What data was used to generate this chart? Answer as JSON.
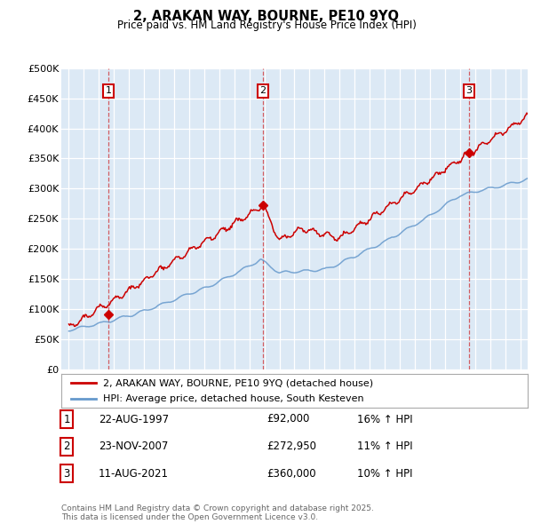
{
  "title": "2, ARAKAN WAY, BOURNE, PE10 9YQ",
  "subtitle": "Price paid vs. HM Land Registry's House Price Index (HPI)",
  "legend_line1": "2, ARAKAN WAY, BOURNE, PE10 9YQ (detached house)",
  "legend_line2": "HPI: Average price, detached house, South Kesteven",
  "ylim": [
    0,
    500000
  ],
  "yticks": [
    0,
    50000,
    100000,
    150000,
    200000,
    250000,
    300000,
    350000,
    400000,
    450000,
    500000
  ],
  "ytick_labels": [
    "£0",
    "£50K",
    "£100K",
    "£150K",
    "£200K",
    "£250K",
    "£300K",
    "£350K",
    "£400K",
    "£450K",
    "£500K"
  ],
  "plot_bg_color": "#dce9f5",
  "fig_bg_color": "#ffffff",
  "grid_color": "#ffffff",
  "red_color": "#cc0000",
  "blue_color": "#6699cc",
  "sale1_date": 1997.64,
  "sale1_price": 92000,
  "sale2_date": 2007.9,
  "sale2_price": 272950,
  "sale3_date": 2021.6,
  "sale3_price": 360000,
  "table_rows": [
    {
      "num": "1",
      "date": "22-AUG-1997",
      "price": "£92,000",
      "hpi": "16% ↑ HPI"
    },
    {
      "num": "2",
      "date": "23-NOV-2007",
      "price": "£272,950",
      "hpi": "11% ↑ HPI"
    },
    {
      "num": "3",
      "date": "11-AUG-2021",
      "price": "£360,000",
      "hpi": "10% ↑ HPI"
    }
  ],
  "footnote": "Contains HM Land Registry data © Crown copyright and database right 2025.\nThis data is licensed under the Open Government Licence v3.0.",
  "xlim_start": 1994.5,
  "xlim_end": 2025.5
}
